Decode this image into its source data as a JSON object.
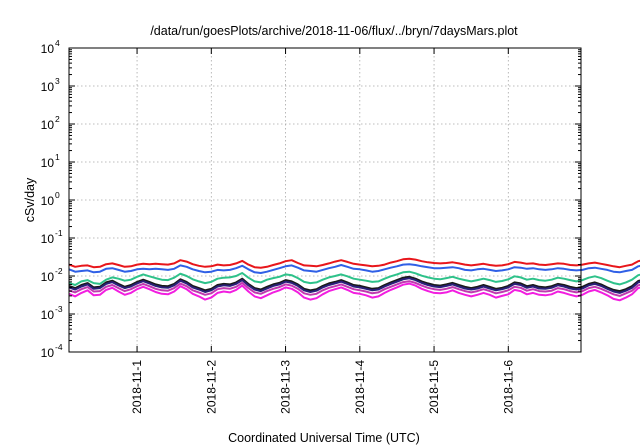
{
  "chart_data": {
    "type": "line",
    "title": "/data/run/goesPlots/archive/2018-11-06/flux/../bryn/7daysMars.plot",
    "xlabel": "Coordinated Universal Time (UTC)",
    "ylabel": "cSv/day",
    "yscale": "log",
    "ylim": [
      0.0001,
      10000
    ],
    "y_ticks": [
      {
        "base": "10",
        "exp": "-4"
      },
      {
        "base": "10",
        "exp": "-3"
      },
      {
        "base": "10",
        "exp": "-2"
      },
      {
        "base": "10",
        "exp": "-1"
      },
      {
        "base": "10",
        "exp": "0"
      },
      {
        "base": "10",
        "exp": "1"
      },
      {
        "base": "10",
        "exp": "2"
      },
      {
        "base": "10",
        "exp": "3"
      },
      {
        "base": "10",
        "exp": "4"
      }
    ],
    "xlim": [
      "2018-10-31T02:00",
      "2018-11-06T23:30"
    ],
    "x_ticks": [
      "2018-11-1",
      "2018-11-2",
      "2018-11-3",
      "2018-11-4",
      "2018-11-5",
      "2018-11-6"
    ],
    "grid": true,
    "legend": "none",
    "sample_interval_hours": 2,
    "series": [
      {
        "color": "#e8161b",
        "base": 0.0195,
        "values": [
          0.02,
          0.0175,
          0.0185,
          0.019,
          0.017,
          0.0175,
          0.0205,
          0.0215,
          0.0195,
          0.0175,
          0.018,
          0.02,
          0.021,
          0.0205,
          0.021,
          0.0205,
          0.02,
          0.0215,
          0.026,
          0.024,
          0.0205,
          0.0185,
          0.0175,
          0.018,
          0.02,
          0.019,
          0.0195,
          0.0215,
          0.025,
          0.02,
          0.017,
          0.0165,
          0.0175,
          0.0195,
          0.0215,
          0.0245,
          0.026,
          0.022,
          0.019,
          0.0185,
          0.018,
          0.0195,
          0.0215,
          0.024,
          0.026,
          0.0235,
          0.021,
          0.02,
          0.019,
          0.018,
          0.0185,
          0.02,
          0.0225,
          0.0245,
          0.0275,
          0.0285,
          0.027,
          0.0245,
          0.023,
          0.022,
          0.0215,
          0.022,
          0.023,
          0.0215,
          0.02,
          0.019,
          0.02,
          0.021,
          0.0195,
          0.0185,
          0.019,
          0.0205,
          0.0235,
          0.0225,
          0.021,
          0.0215,
          0.02,
          0.0195,
          0.0205,
          0.0215,
          0.021,
          0.0195,
          0.019,
          0.02,
          0.0215,
          0.0225,
          0.021,
          0.0195,
          0.018,
          0.017,
          0.0185,
          0.02,
          0.0245,
          0.0265,
          0.025,
          0.0225,
          0.02,
          0.0185,
          0.0165,
          0.0165,
          0.0175,
          0.0195,
          0.0215,
          0.0225
        ]
      },
      {
        "color": "#3060e6",
        "base": 0.0145,
        "values": [
          0.015,
          0.013,
          0.0135,
          0.014,
          0.0125,
          0.013,
          0.0155,
          0.016,
          0.0145,
          0.013,
          0.0135,
          0.015,
          0.0155,
          0.015,
          0.0155,
          0.015,
          0.0145,
          0.0155,
          0.019,
          0.0175,
          0.015,
          0.0135,
          0.0125,
          0.013,
          0.0145,
          0.014,
          0.0145,
          0.016,
          0.0185,
          0.015,
          0.0125,
          0.012,
          0.013,
          0.0145,
          0.016,
          0.018,
          0.019,
          0.0165,
          0.014,
          0.0135,
          0.013,
          0.0145,
          0.016,
          0.0175,
          0.0195,
          0.0175,
          0.0155,
          0.015,
          0.014,
          0.013,
          0.0135,
          0.015,
          0.0165,
          0.018,
          0.02,
          0.0205,
          0.0195,
          0.018,
          0.017,
          0.016,
          0.016,
          0.0165,
          0.017,
          0.016,
          0.0145,
          0.014,
          0.015,
          0.0155,
          0.0145,
          0.0135,
          0.014,
          0.015,
          0.017,
          0.0165,
          0.0155,
          0.016,
          0.015,
          0.0145,
          0.015,
          0.016,
          0.0155,
          0.0145,
          0.014,
          0.0145,
          0.016,
          0.0165,
          0.0155,
          0.0145,
          0.013,
          0.0125,
          0.0135,
          0.0145,
          0.018,
          0.0195,
          0.0185,
          0.0165,
          0.015,
          0.0135,
          0.012,
          0.012,
          0.013,
          0.0145,
          0.016,
          0.0165
        ]
      },
      {
        "color": "#2ec28a",
        "base": 0.0085,
        "values": [
          0.0065,
          0.0058,
          0.0072,
          0.0078,
          0.0065,
          0.0062,
          0.008,
          0.0092,
          0.0085,
          0.0075,
          0.008,
          0.0095,
          0.011,
          0.0098,
          0.0088,
          0.008,
          0.0078,
          0.009,
          0.0115,
          0.01,
          0.0082,
          0.0072,
          0.0065,
          0.007,
          0.0085,
          0.009,
          0.0092,
          0.01,
          0.012,
          0.009,
          0.0072,
          0.0068,
          0.008,
          0.0088,
          0.0095,
          0.011,
          0.0105,
          0.0088,
          0.007,
          0.0065,
          0.0068,
          0.008,
          0.0092,
          0.01,
          0.011,
          0.0098,
          0.0085,
          0.008,
          0.0075,
          0.007,
          0.0072,
          0.0085,
          0.0098,
          0.011,
          0.0125,
          0.013,
          0.0118,
          0.0102,
          0.0092,
          0.0085,
          0.0082,
          0.0088,
          0.0095,
          0.0085,
          0.0078,
          0.0072,
          0.0078,
          0.0085,
          0.0078,
          0.007,
          0.0074,
          0.0082,
          0.0098,
          0.0092,
          0.008,
          0.0085,
          0.0078,
          0.0075,
          0.008,
          0.009,
          0.0085,
          0.0078,
          0.0072,
          0.0078,
          0.009,
          0.0098,
          0.0088,
          0.0075,
          0.0065,
          0.006,
          0.0068,
          0.008,
          0.0105,
          0.0115,
          0.01,
          0.0088,
          0.0078,
          0.007,
          0.006,
          0.0062,
          0.007,
          0.0085,
          0.01,
          0.0098
        ]
      },
      {
        "color": "#1a1a1a",
        "base": 0.0058,
        "values": [
          0.0055,
          0.0048,
          0.0058,
          0.0065,
          0.005,
          0.0052,
          0.0068,
          0.0075,
          0.0062,
          0.0052,
          0.0058,
          0.007,
          0.008,
          0.007,
          0.006,
          0.0055,
          0.0054,
          0.0062,
          0.0082,
          0.007,
          0.0055,
          0.0048,
          0.0042,
          0.0046,
          0.0058,
          0.0062,
          0.006,
          0.0068,
          0.0085,
          0.0062,
          0.0048,
          0.0044,
          0.0052,
          0.006,
          0.0066,
          0.0078,
          0.0072,
          0.006,
          0.0046,
          0.0042,
          0.0045,
          0.0055,
          0.0064,
          0.007,
          0.0078,
          0.0068,
          0.0058,
          0.0055,
          0.005,
          0.0046,
          0.0048,
          0.0058,
          0.0068,
          0.0078,
          0.009,
          0.0095,
          0.0085,
          0.0072,
          0.0064,
          0.0058,
          0.0056,
          0.006,
          0.0066,
          0.0058,
          0.0052,
          0.0048,
          0.0052,
          0.0058,
          0.0052,
          0.0046,
          0.0049,
          0.0055,
          0.0068,
          0.0064,
          0.0054,
          0.0058,
          0.0052,
          0.005,
          0.0054,
          0.0062,
          0.0058,
          0.0052,
          0.0048,
          0.0052,
          0.0062,
          0.0068,
          0.006,
          0.005,
          0.0043,
          0.004,
          0.0045,
          0.0054,
          0.0074,
          0.0082,
          0.007,
          0.006,
          0.0053,
          0.0047,
          0.004,
          0.0041,
          0.0047,
          0.0058,
          0.007,
          0.0066
        ]
      },
      {
        "color": "#2a1f7a",
        "base": 0.0052,
        "values": [
          0.005,
          0.0044,
          0.0053,
          0.006,
          0.0046,
          0.0048,
          0.0062,
          0.0069,
          0.0057,
          0.0048,
          0.0053,
          0.0064,
          0.0073,
          0.0064,
          0.0055,
          0.005,
          0.0049,
          0.0057,
          0.0075,
          0.0064,
          0.005,
          0.0044,
          0.0038,
          0.0042,
          0.0053,
          0.0057,
          0.0055,
          0.0062,
          0.0078,
          0.0057,
          0.0044,
          0.004,
          0.0047,
          0.0055,
          0.006,
          0.0071,
          0.0066,
          0.0055,
          0.0042,
          0.0038,
          0.0041,
          0.005,
          0.0058,
          0.0064,
          0.0071,
          0.0062,
          0.0053,
          0.005,
          0.0046,
          0.0042,
          0.0044,
          0.0053,
          0.0062,
          0.0071,
          0.0082,
          0.0087,
          0.0078,
          0.0066,
          0.0058,
          0.0053,
          0.0051,
          0.0055,
          0.006,
          0.0053,
          0.0047,
          0.0044,
          0.0047,
          0.0053,
          0.0047,
          0.0042,
          0.0045,
          0.005,
          0.0062,
          0.0058,
          0.0049,
          0.0053,
          0.0047,
          0.0046,
          0.0049,
          0.0057,
          0.0053,
          0.0047,
          0.0044,
          0.0047,
          0.0057,
          0.0062,
          0.0055,
          0.0046,
          0.0039,
          0.0036,
          0.0041,
          0.0049,
          0.0068,
          0.0075,
          0.0064,
          0.0055,
          0.0048,
          0.0043,
          0.0036,
          0.0037,
          0.0043,
          0.0053,
          0.0064,
          0.006
        ]
      },
      {
        "color": "#c03ab0",
        "base": 0.0044,
        "values": [
          0.0042,
          0.0037,
          0.0045,
          0.0051,
          0.0039,
          0.004,
          0.0052,
          0.0058,
          0.0048,
          0.004,
          0.0045,
          0.0054,
          0.0062,
          0.0054,
          0.0046,
          0.0042,
          0.0041,
          0.0048,
          0.0063,
          0.0054,
          0.0042,
          0.0037,
          0.0032,
          0.0035,
          0.0045,
          0.0048,
          0.0046,
          0.0052,
          0.0066,
          0.0048,
          0.0037,
          0.0034,
          0.004,
          0.0046,
          0.0051,
          0.006,
          0.0056,
          0.0046,
          0.0035,
          0.0032,
          0.0034,
          0.0042,
          0.0049,
          0.0054,
          0.006,
          0.0052,
          0.0045,
          0.0042,
          0.0039,
          0.0035,
          0.0037,
          0.0045,
          0.0052,
          0.006,
          0.0069,
          0.0073,
          0.0066,
          0.0056,
          0.0049,
          0.0045,
          0.0043,
          0.0046,
          0.0051,
          0.0045,
          0.004,
          0.0037,
          0.004,
          0.0045,
          0.004,
          0.0035,
          0.0038,
          0.0042,
          0.0052,
          0.0049,
          0.0041,
          0.0045,
          0.004,
          0.0039,
          0.0041,
          0.0048,
          0.0045,
          0.004,
          0.0037,
          0.004,
          0.0048,
          0.0052,
          0.0046,
          0.0039,
          0.0033,
          0.003,
          0.0035,
          0.0041,
          0.0057,
          0.0063,
          0.0054,
          0.0046,
          0.0041,
          0.0036,
          0.003,
          0.0031,
          0.0036,
          0.0045,
          0.0054,
          0.0051
        ]
      },
      {
        "color": "#f21ee0",
        "base": 0.0036,
        "values": [
          0.0034,
          0.0029,
          0.0036,
          0.0042,
          0.0031,
          0.0032,
          0.0043,
          0.0049,
          0.0039,
          0.0032,
          0.0036,
          0.0045,
          0.0052,
          0.0045,
          0.0038,
          0.0034,
          0.0033,
          0.0039,
          0.0054,
          0.0045,
          0.0034,
          0.0029,
          0.0024,
          0.0027,
          0.0036,
          0.0039,
          0.0037,
          0.0043,
          0.0056,
          0.0039,
          0.0029,
          0.0026,
          0.0031,
          0.0037,
          0.0042,
          0.005,
          0.0046,
          0.0037,
          0.0027,
          0.0024,
          0.0026,
          0.0033,
          0.004,
          0.0045,
          0.005,
          0.0043,
          0.0036,
          0.0034,
          0.0031,
          0.0027,
          0.0029,
          0.0036,
          0.0043,
          0.005,
          0.0059,
          0.0063,
          0.0056,
          0.0046,
          0.004,
          0.0036,
          0.0035,
          0.0037,
          0.0042,
          0.0036,
          0.0032,
          0.0029,
          0.0032,
          0.0036,
          0.0032,
          0.0027,
          0.003,
          0.0033,
          0.0043,
          0.004,
          0.0033,
          0.0036,
          0.0032,
          0.0031,
          0.0033,
          0.0039,
          0.0036,
          0.0032,
          0.0029,
          0.0032,
          0.0039,
          0.0043,
          0.0037,
          0.0031,
          0.0025,
          0.0023,
          0.0027,
          0.0033,
          0.0048,
          0.0053,
          0.0045,
          0.0037,
          0.0033,
          0.0028,
          0.0023,
          0.0024,
          0.0028,
          0.0036,
          0.0045,
          0.0042
        ]
      }
    ]
  }
}
